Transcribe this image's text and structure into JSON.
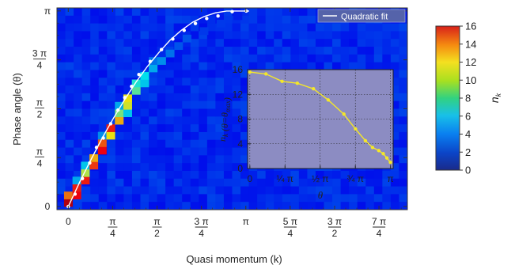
{
  "chart_data": [
    {
      "type": "heatmap",
      "xlabel": "Quasi momentum (k)",
      "ylabel": "Phase angle (θ)",
      "x_tick_labels": [
        "0",
        "π/4",
        "π/2",
        "3π/4",
        "π",
        "5π/4",
        "3π/2",
        "7π/4"
      ],
      "x_ticks": [
        0,
        0.7854,
        1.5708,
        2.3562,
        3.1416,
        3.927,
        4.7124,
        5.4978
      ],
      "y_tick_labels": [
        "0",
        "π/4",
        "π/2",
        "3π/4",
        "π"
      ],
      "y_ticks": [
        0,
        0.7854,
        1.5708,
        2.3562,
        3.1416
      ],
      "xlim": [
        -0.2,
        6.0
      ],
      "ylim": [
        -0.05,
        3.19
      ],
      "grid_bins": [
        42,
        26
      ],
      "bright_bins": [
        {
          "k": 0.0,
          "theta": 0.06,
          "value": 15.0
        },
        {
          "k": 0.0,
          "theta": 0.18,
          "value": 12.0
        },
        {
          "k": 0.15,
          "theta": 0.18,
          "value": 14.0
        },
        {
          "k": 0.15,
          "theta": 0.3,
          "value": 13.5
        },
        {
          "k": 0.15,
          "theta": 0.42,
          "value": 5.0
        },
        {
          "k": 0.3,
          "theta": 0.42,
          "value": 13.5
        },
        {
          "k": 0.3,
          "theta": 0.54,
          "value": 9.0
        },
        {
          "k": 0.3,
          "theta": 0.66,
          "value": 5.5
        },
        {
          "k": 0.45,
          "theta": 0.66,
          "value": 13.0
        },
        {
          "k": 0.45,
          "theta": 0.78,
          "value": 11.0
        },
        {
          "k": 0.6,
          "theta": 0.9,
          "value": 14.0
        },
        {
          "k": 0.6,
          "theta": 1.02,
          "value": 12.5
        },
        {
          "k": 0.6,
          "theta": 1.14,
          "value": 4.5
        },
        {
          "k": 0.75,
          "theta": 1.14,
          "value": 10.0
        },
        {
          "k": 0.75,
          "theta": 1.26,
          "value": 13.5
        },
        {
          "k": 0.9,
          "theta": 1.38,
          "value": 11.0
        },
        {
          "k": 0.9,
          "theta": 1.5,
          "value": 8.0
        },
        {
          "k": 0.9,
          "theta": 1.62,
          "value": 5.0
        },
        {
          "k": 1.05,
          "theta": 1.5,
          "value": 5.5
        },
        {
          "k": 1.05,
          "theta": 1.62,
          "value": 9.5
        },
        {
          "k": 1.05,
          "theta": 1.74,
          "value": 10.0
        },
        {
          "k": 1.2,
          "theta": 1.86,
          "value": 7.5
        },
        {
          "k": 1.2,
          "theta": 1.98,
          "value": 6.5
        },
        {
          "k": 1.35,
          "theta": 1.98,
          "value": 5.5
        },
        {
          "k": 1.35,
          "theta": 2.1,
          "value": 6.0
        },
        {
          "k": 1.5,
          "theta": 2.22,
          "value": 5.0
        },
        {
          "k": 1.5,
          "theta": 2.34,
          "value": 4.0
        },
        {
          "k": 1.65,
          "theta": 2.34,
          "value": 4.5
        },
        {
          "k": 1.8,
          "theta": 2.46,
          "value": 4.0
        },
        {
          "k": 1.95,
          "theta": 2.58,
          "value": 3.5
        },
        {
          "k": 2.1,
          "theta": 2.7,
          "value": 3.5
        },
        {
          "k": 2.4,
          "theta": 2.82,
          "value": 3.0
        },
        {
          "k": 2.7,
          "theta": 2.94,
          "value": 3.0
        },
        {
          "k": 3.0,
          "theta": 3.06,
          "value": 2.5
        }
      ],
      "series": [
        {
          "mode": "points",
          "x": [
            0.0,
            0.12,
            0.25,
            0.38,
            0.5,
            0.62,
            0.75,
            0.88,
            1.0,
            1.12,
            1.25,
            1.45,
            1.65,
            1.85,
            2.05,
            2.25,
            2.45,
            2.65,
            2.9,
            3.15
          ],
          "y": [
            0.0,
            0.2,
            0.45,
            0.7,
            0.95,
            1.1,
            1.33,
            1.55,
            1.75,
            1.93,
            2.12,
            2.33,
            2.52,
            2.69,
            2.83,
            2.94,
            3.02,
            3.06,
            3.13,
            3.14
          ]
        },
        {
          "name": "Quadratic fit",
          "mode": "line",
          "x": [
            0.0,
            0.2,
            0.4,
            0.6,
            0.8,
            1.0,
            1.2,
            1.4,
            1.6,
            1.8,
            2.0,
            2.2,
            2.4,
            2.6,
            2.8,
            3.0,
            3.2
          ],
          "y": [
            0.0,
            0.39,
            0.75,
            1.1,
            1.42,
            1.72,
            2.0,
            2.25,
            2.47,
            2.67,
            2.83,
            2.96,
            3.05,
            3.11,
            3.14,
            3.14,
            3.14
          ]
        }
      ],
      "legend": {
        "position": "top-right",
        "entries": [
          "Quadratic fit"
        ]
      },
      "colors": {
        "background": "#1c3a94",
        "marker": "#ffffff",
        "fit_line": "#ffffff",
        "legend_bg": "#5563aa"
      },
      "colorbar": {
        "label": "n_k",
        "min": 0,
        "max": 16,
        "ticks": [
          0,
          2,
          4,
          6,
          8,
          10,
          12,
          14,
          16
        ]
      }
    },
    {
      "type": "line",
      "role": "inset",
      "xlabel": "θ",
      "ylabel": "n_k (θ=θ_max)",
      "x_tick_labels": [
        "0",
        "¼ π",
        "½ π",
        "¾ π",
        "π"
      ],
      "x_ticks": [
        0,
        0.7854,
        1.5708,
        2.3562,
        3.1416
      ],
      "y_ticks": [
        0,
        4,
        8,
        12,
        16
      ],
      "xlim": [
        -0.05,
        3.2
      ],
      "ylim": [
        0,
        16
      ],
      "grid": true,
      "series": [
        {
          "x": [
            0.0,
            0.36,
            0.72,
            1.06,
            1.42,
            1.75,
            2.1,
            2.36,
            2.58,
            2.74,
            2.88,
            2.98,
            3.06,
            3.14
          ],
          "y": [
            15.6,
            15.3,
            14.1,
            13.8,
            12.9,
            11.1,
            8.8,
            6.4,
            4.5,
            3.4,
            2.9,
            2.4,
            1.7,
            1.0
          ]
        }
      ],
      "colors": {
        "background": "#8c8cc2",
        "line": "#f4e72a"
      }
    }
  ]
}
